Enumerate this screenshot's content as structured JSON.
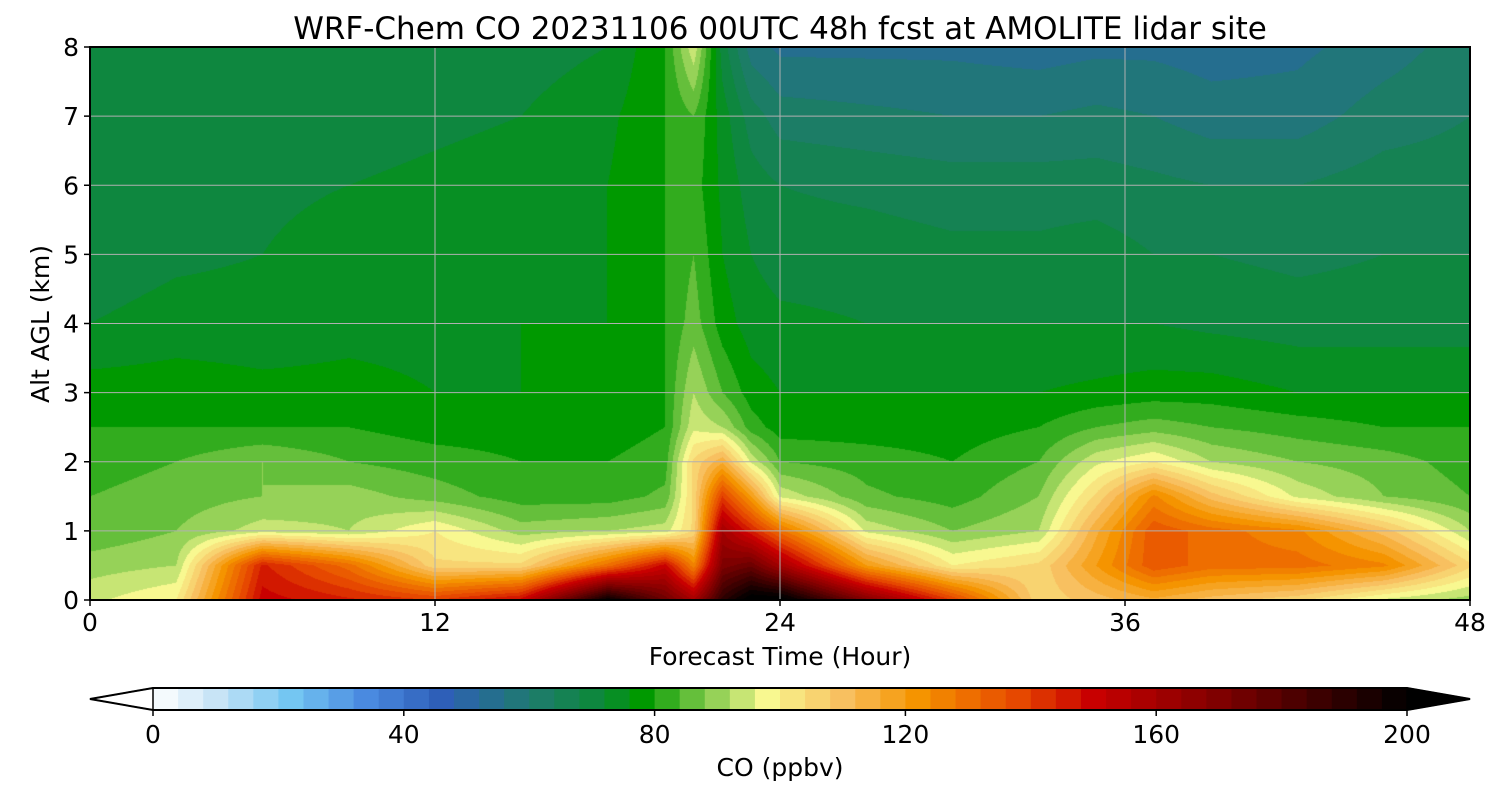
{
  "chart_data": {
    "type": "heatmap",
    "title": "WRF-Chem CO  20231106 00UTC 48h fcst at AMOLITE lidar site",
    "xlabel": "Forecast Time (Hour)",
    "ylabel": "Alt AGL (km)",
    "xlim": [
      0,
      48
    ],
    "ylim": [
      0,
      8
    ],
    "x_ticks": [
      "0",
      "12",
      "24",
      "36",
      "48"
    ],
    "y_ticks": [
      "0",
      "1",
      "2",
      "3",
      "4",
      "5",
      "6",
      "7",
      "8"
    ],
    "grid": true,
    "x": [
      0,
      3,
      6,
      9,
      12,
      15,
      18,
      20,
      21,
      22,
      23,
      24,
      27,
      30,
      33,
      35,
      37,
      39,
      42,
      45,
      48
    ],
    "y": [
      0,
      0.5,
      1,
      1.5,
      2,
      2.5,
      3,
      4,
      5,
      6,
      7,
      8
    ],
    "z": [
      [
        95,
        100,
        150,
        145,
        140,
        150,
        200,
        175,
        160,
        190,
        205,
        205,
        170,
        140,
        105,
        110,
        115,
        110,
        105,
        95,
        90
      ],
      [
        90,
        92,
        145,
        130,
        105,
        105,
        130,
        150,
        125,
        170,
        175,
        160,
        120,
        100,
        105,
        120,
        135,
        130,
        130,
        125,
        105
      ],
      [
        85,
        88,
        94,
        92,
        100,
        90,
        92,
        94,
        105,
        160,
        145,
        130,
        95,
        88,
        92,
        115,
        135,
        130,
        125,
        110,
        92
      ],
      [
        84,
        86,
        88,
        90,
        86,
        82,
        82,
        85,
        105,
        140,
        120,
        95,
        85,
        82,
        88,
        105,
        125,
        110,
        95,
        88,
        84
      ],
      [
        82,
        84,
        88,
        84,
        82,
        80,
        80,
        82,
        105,
        115,
        95,
        84,
        82,
        80,
        84,
        95,
        100,
        92,
        88,
        86,
        82
      ],
      [
        80,
        80,
        80,
        80,
        78,
        78,
        78,
        80,
        95,
        92,
        82,
        78,
        78,
        78,
        80,
        84,
        86,
        84,
        82,
        80,
        80
      ],
      [
        78,
        78,
        77,
        77,
        76,
        76,
        77,
        80,
        92,
        84,
        78,
        76,
        76,
        76,
        76,
        77,
        78,
        78,
        76,
        76,
        76
      ],
      [
        72,
        74,
        74,
        75,
        75,
        76,
        76,
        80,
        86,
        78,
        74,
        73,
        72,
        72,
        72,
        72,
        72,
        71,
        70,
        70,
        70
      ],
      [
        69,
        71,
        72,
        74,
        74,
        75,
        76,
        80,
        84,
        76,
        72,
        70,
        70,
        69,
        69,
        70,
        68,
        68,
        67,
        68,
        68
      ],
      [
        68,
        70,
        71,
        72,
        73,
        74,
        76,
        80,
        82,
        75,
        70,
        68,
        67,
        66,
        66,
        66,
        65,
        64,
        64,
        66,
        66
      ],
      [
        68,
        69,
        70,
        70,
        71,
        72,
        75,
        80,
        84,
        74,
        66,
        62,
        61,
        60,
        60,
        61,
        60,
        58,
        58,
        62,
        64
      ],
      [
        69,
        68,
        70,
        68,
        70,
        70,
        72,
        80,
        95,
        70,
        58,
        55,
        55,
        55,
        54,
        55,
        55,
        54,
        55,
        58,
        62
      ]
    ],
    "colorbar": {
      "label": "CO  (ppbv)",
      "min": 0,
      "max": 200,
      "step": 4,
      "extend": "both",
      "ticks": [
        "0",
        "40",
        "80",
        "120",
        "160",
        "200"
      ],
      "stops": [
        [
          0,
          "#ffffff"
        ],
        [
          10,
          "#c8e4f6"
        ],
        [
          22,
          "#74c6f2"
        ],
        [
          34,
          "#4a8ae0"
        ],
        [
          46,
          "#2e5fb8"
        ],
        [
          60,
          "#1f7a70"
        ],
        [
          72,
          "#0b8a35"
        ],
        [
          78,
          "#009900"
        ],
        [
          88,
          "#7ec84a"
        ],
        [
          98,
          "#f8f890"
        ],
        [
          110,
          "#f8c060"
        ],
        [
          122,
          "#f59400"
        ],
        [
          138,
          "#e64800"
        ],
        [
          150,
          "#c80000"
        ],
        [
          172,
          "#780000"
        ],
        [
          200,
          "#000000"
        ]
      ]
    }
  }
}
